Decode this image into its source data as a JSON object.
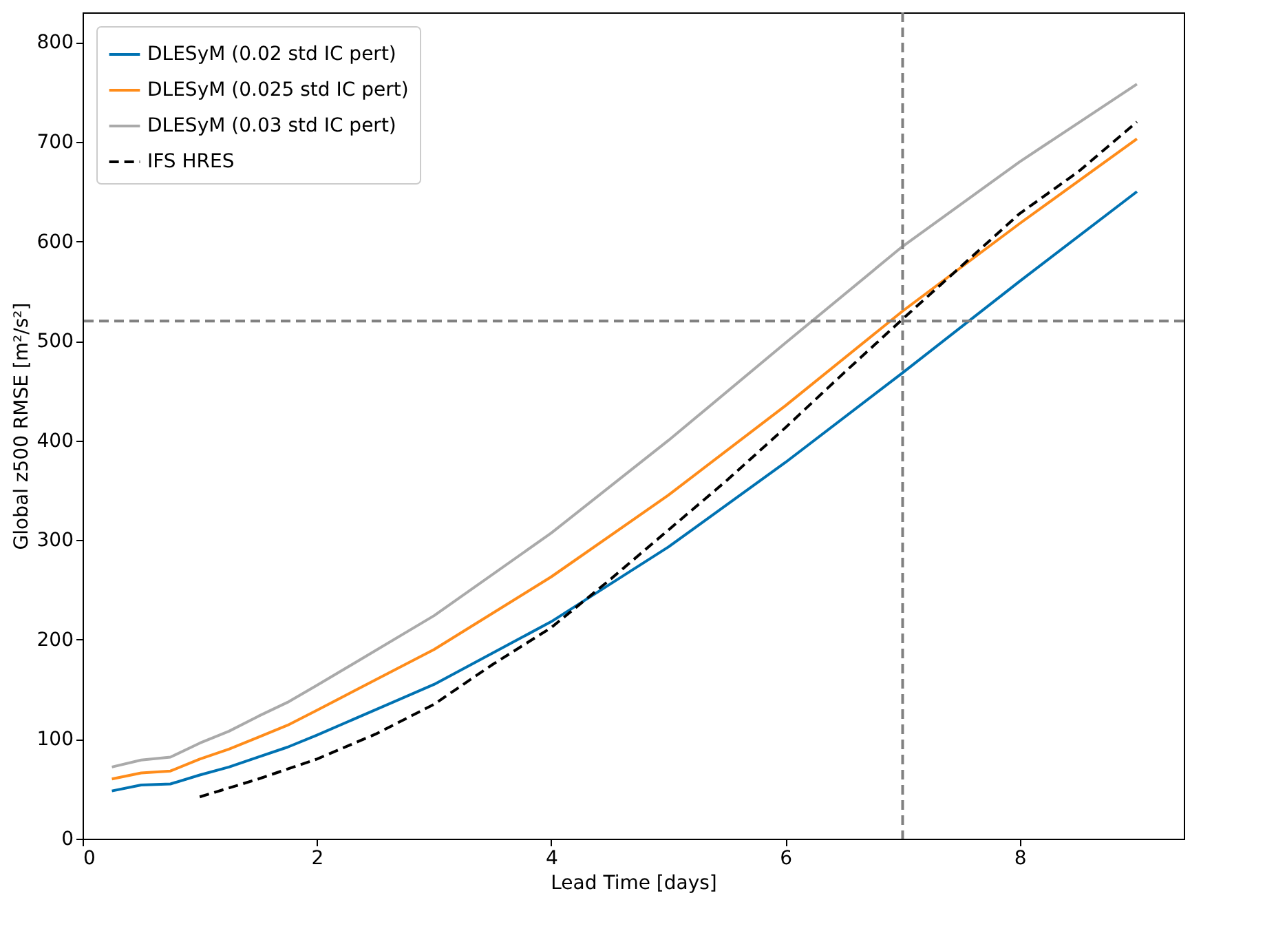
{
  "chart_data": {
    "type": "line",
    "xlabel": "Lead Time [days]",
    "ylabel": "Global z500 RMSE [m²/s²]",
    "xlim": [
      0,
      9.4
    ],
    "ylim": [
      0,
      830
    ],
    "xticks": [
      0,
      2,
      4,
      6,
      8
    ],
    "yticks": [
      0,
      100,
      200,
      300,
      400,
      500,
      600,
      700,
      800
    ],
    "grid": false,
    "legend": "top left",
    "marker": "none",
    "series": [
      {
        "name": "DLESyM (0.02 std IC pert)",
        "color": "#0072b2",
        "line_style": "solid",
        "x": [
          0.25,
          0.5,
          0.75,
          1,
          1.25,
          1.5,
          1.75,
          2,
          3,
          4,
          5,
          6,
          7,
          8,
          9
        ],
        "values": [
          48,
          54,
          55,
          64,
          72,
          82,
          92,
          104,
          155,
          218,
          293,
          378,
          468,
          560,
          650
        ]
      },
      {
        "name": "DLESyM (0.025 std IC pert)",
        "color": "#ff8c1a",
        "line_style": "solid",
        "x": [
          0.25,
          0.5,
          0.75,
          1,
          1.25,
          1.5,
          1.75,
          2,
          3,
          4,
          5,
          6,
          7,
          8,
          9
        ],
        "values": [
          60,
          66,
          68,
          80,
          90,
          102,
          114,
          129,
          190,
          263,
          345,
          435,
          530,
          618,
          703
        ]
      },
      {
        "name": "DLESyM (0.03 std IC pert)",
        "color": "#aaaaaa",
        "line_style": "solid",
        "x": [
          0.25,
          0.5,
          0.75,
          1,
          1.25,
          1.5,
          1.75,
          2,
          3,
          4,
          5,
          6,
          7,
          8,
          9
        ],
        "values": [
          72,
          79,
          82,
          96,
          108,
          123,
          137,
          154,
          224,
          307,
          400,
          498,
          595,
          680,
          758
        ]
      },
      {
        "name": "IFS HRES",
        "color": "#000000",
        "line_style": "dashed",
        "x": [
          1,
          1.5,
          2,
          2.5,
          3,
          3.5,
          4,
          4.5,
          5,
          5.5,
          6,
          6.5,
          7,
          7.5,
          8,
          8.5,
          9
        ],
        "values": [
          42,
          60,
          80,
          105,
          135,
          175,
          212,
          260,
          310,
          360,
          413,
          468,
          522,
          575,
          628,
          670,
          720
        ]
      }
    ],
    "ref_lines": [
      {
        "axis": "x",
        "value": 7,
        "color": "#808080",
        "line_style": "dashed"
      },
      {
        "axis": "y",
        "value": 520,
        "color": "#808080",
        "line_style": "dashed"
      }
    ]
  }
}
